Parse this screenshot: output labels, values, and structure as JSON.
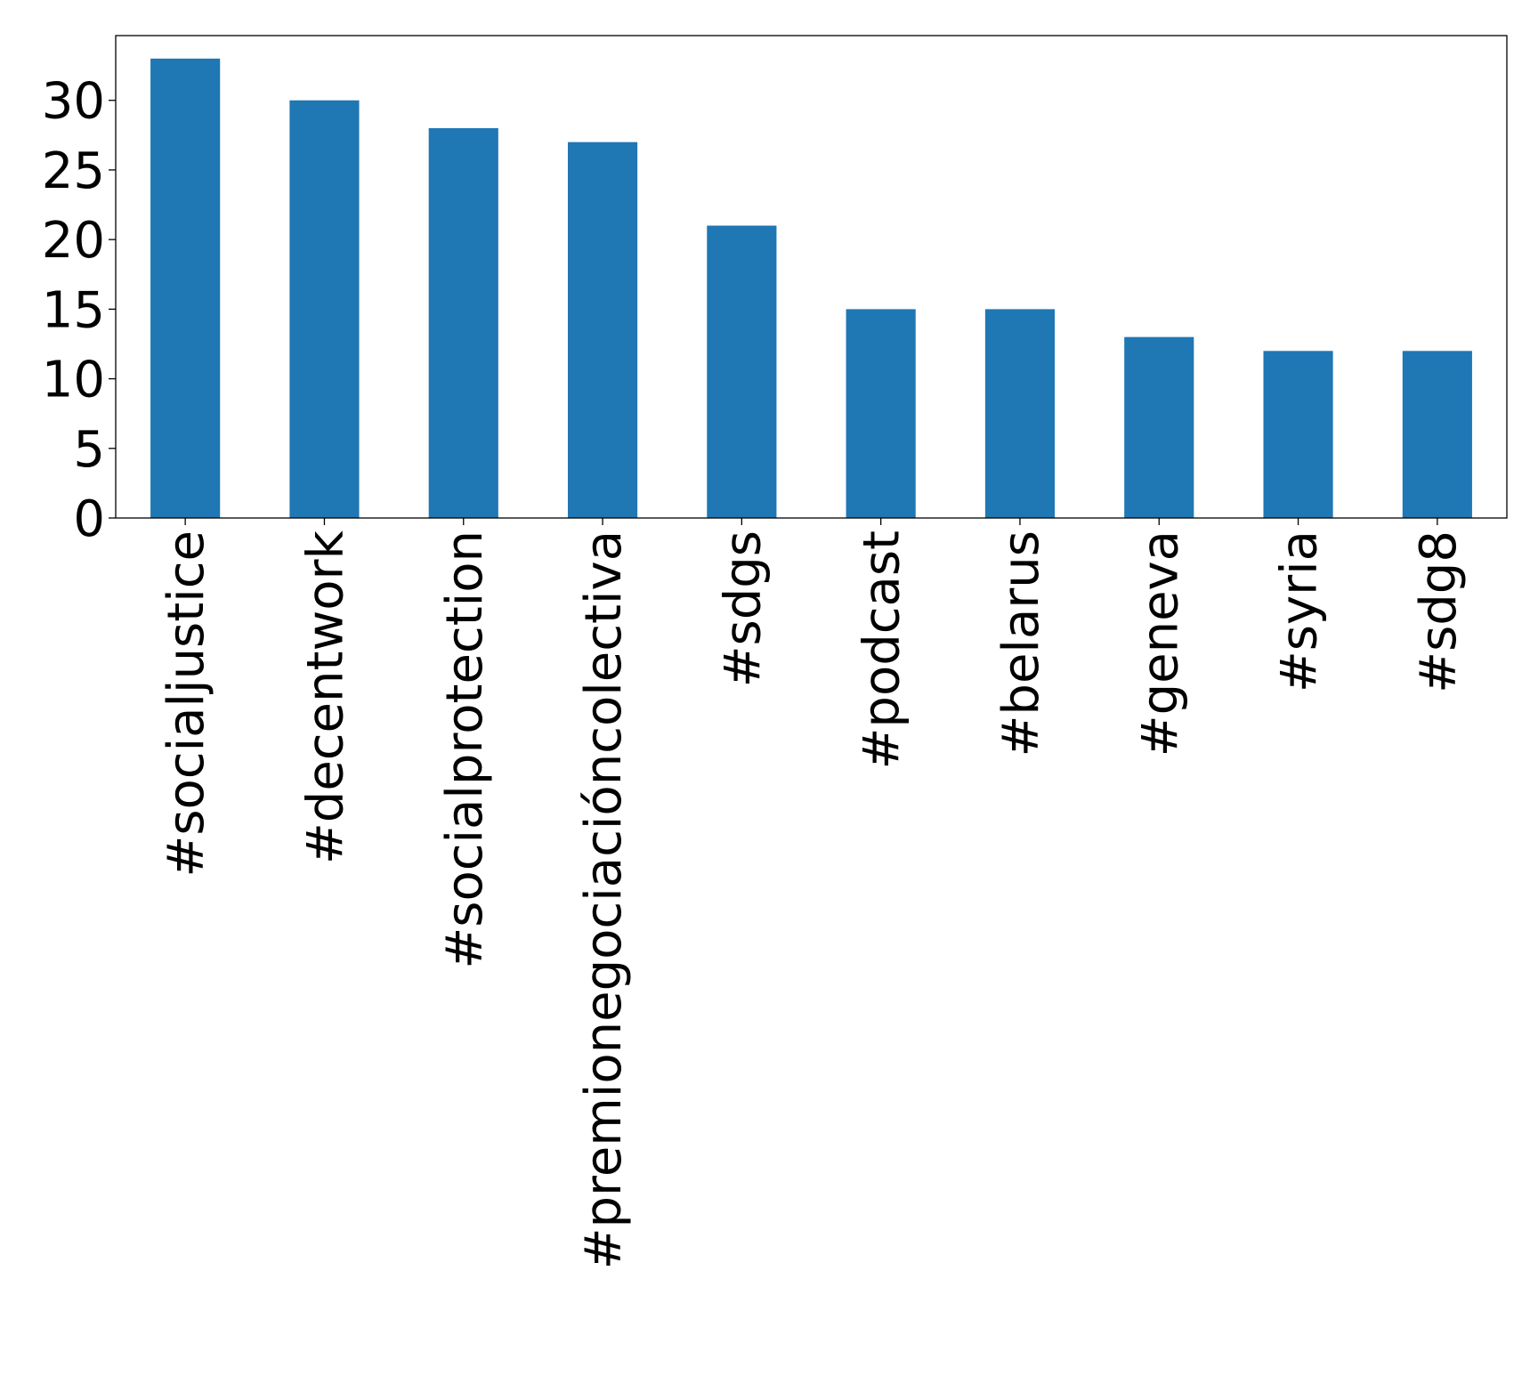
{
  "chart_data": {
    "type": "bar",
    "title": "",
    "xlabel": "",
    "ylabel": "",
    "categories": [
      "#socialjustice",
      "#decentwork",
      "#socialprotection",
      "#premionegociaciónc­olectiva",
      "#sdgs",
      "#podcast",
      "#belarus",
      "#geneva",
      "#syria",
      "#sdg8"
    ],
    "values": [
      33,
      30,
      28,
      27,
      21,
      15,
      15,
      13,
      12,
      12
    ],
    "ylim": [
      0,
      34.65
    ],
    "yticks": [
      0,
      5,
      10,
      15,
      20,
      25,
      30
    ],
    "bar_color": "#1f77b4",
    "grid": false,
    "legend": "none"
  }
}
